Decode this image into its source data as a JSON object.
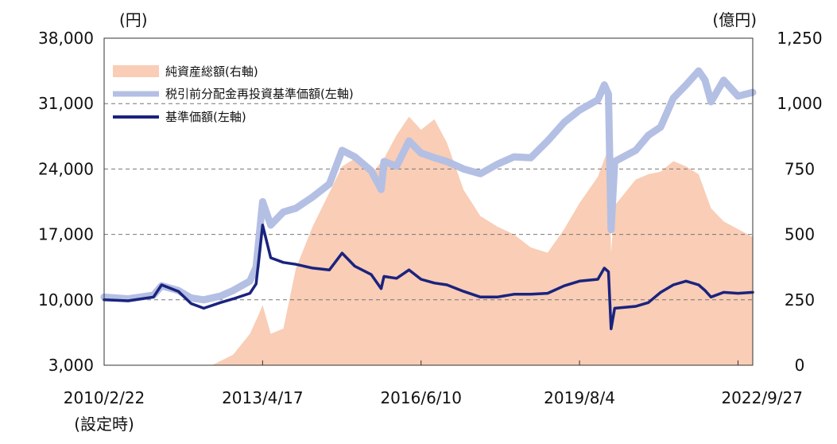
{
  "chart_data": {
    "type": "line",
    "left_axis": {
      "unit": "(円)",
      "range": [
        3000,
        38000
      ],
      "ticks": [
        "38,000",
        "31,000",
        "24,000",
        "17,000",
        "10,000",
        "3,000"
      ],
      "tick_values": [
        38000,
        31000,
        24000,
        17000,
        10000,
        3000
      ]
    },
    "right_axis": {
      "unit": "(億円)",
      "range": [
        0,
        1250
      ],
      "ticks": [
        "1,250",
        "1,000",
        "750",
        "500",
        "250",
        "0"
      ],
      "tick_values": [
        1250,
        1000,
        750,
        500,
        250,
        0
      ]
    },
    "x_axis": {
      "range": [
        "2010-02-22",
        "2023-01-12"
      ],
      "ticks": [
        "2010/2/22",
        "2013/4/17",
        "2016/6/10",
        "2019/8/4",
        "2022/9/27"
      ],
      "tick_dates": [
        "2010-02-22",
        "2013-04-17",
        "2016-06-10",
        "2019-08-04",
        "2022-09-27"
      ],
      "first_tick_note": "(設定時)"
    },
    "grid": "horizontal dashed",
    "legend_position": "top-left",
    "series": [
      {
        "name": "純資産総額(右軸)",
        "type": "area",
        "axis": "right",
        "color": "#f9cdb6",
        "x": [
          "2010-02-22",
          "2012-04-15",
          "2012-09-15",
          "2013-01-15",
          "2013-03-25",
          "2013-04-17",
          "2013-06-15",
          "2013-09-15",
          "2013-12-15",
          "2014-04-15",
          "2014-08-15",
          "2014-11-15",
          "2015-02-15",
          "2015-06-15",
          "2015-09-15",
          "2015-12-15",
          "2016-03-15",
          "2016-06-10",
          "2016-09-15",
          "2016-12-15",
          "2017-04-15",
          "2017-08-15",
          "2017-12-15",
          "2018-04-15",
          "2018-08-15",
          "2018-12-15",
          "2019-04-15",
          "2019-08-04",
          "2019-12-15",
          "2020-03-01",
          "2020-03-20",
          "2020-04-15",
          "2020-09-15",
          "2020-12-15",
          "2021-03-15",
          "2021-06-15",
          "2021-09-15",
          "2021-12-15",
          "2022-03-15",
          "2022-06-15",
          "2022-09-27",
          "2023-01-12"
        ],
        "values": [
          0,
          0,
          40,
          120,
          200,
          230,
          120,
          140,
          370,
          530,
          660,
          760,
          790,
          730,
          790,
          880,
          950,
          900,
          940,
          850,
          670,
          570,
          530,
          500,
          450,
          430,
          520,
          620,
          720,
          830,
          430,
          610,
          710,
          730,
          740,
          780,
          760,
          730,
          600,
          550,
          520,
          490
        ]
      },
      {
        "name": "税引前分配金再投資基準価額(左軸)",
        "type": "line",
        "axis": "left",
        "color": "#b4bfe4",
        "x": [
          "2010-02-22",
          "2010-08-15",
          "2011-02-15",
          "2011-04-15",
          "2011-08-15",
          "2011-11-15",
          "2012-02-15",
          "2012-06-15",
          "2012-09-15",
          "2013-01-15",
          "2013-03-01",
          "2013-04-17",
          "2013-06-15",
          "2013-09-15",
          "2013-12-15",
          "2014-04-15",
          "2014-08-15",
          "2014-11-15",
          "2015-02-15",
          "2015-06-15",
          "2015-08-25",
          "2015-09-15",
          "2015-12-15",
          "2016-03-15",
          "2016-06-10",
          "2016-09-15",
          "2016-12-15",
          "2017-04-15",
          "2017-08-15",
          "2017-12-15",
          "2018-04-15",
          "2018-08-15",
          "2018-12-15",
          "2019-04-15",
          "2019-08-04",
          "2019-12-15",
          "2020-01-31",
          "2020-03-01",
          "2020-03-20",
          "2020-04-15",
          "2020-09-15",
          "2020-12-15",
          "2021-03-15",
          "2021-06-15",
          "2021-09-15",
          "2021-12-15",
          "2022-01-31",
          "2022-03-15",
          "2022-06-15",
          "2022-09-27",
          "2023-01-12"
        ],
        "values": [
          10300,
          10100,
          10500,
          11500,
          11000,
          10200,
          10000,
          10400,
          11000,
          12000,
          13500,
          20500,
          18000,
          19400,
          19800,
          21000,
          22400,
          26000,
          25300,
          23800,
          21800,
          24800,
          24300,
          27000,
          25700,
          25200,
          24800,
          24000,
          23500,
          24500,
          25300,
          25200,
          27000,
          29000,
          30300,
          31400,
          33000,
          32000,
          17500,
          24800,
          26000,
          27600,
          28500,
          31600,
          33000,
          34500,
          33500,
          31200,
          33500,
          31800,
          32200
        ]
      },
      {
        "name": "基準価額(左軸)",
        "type": "line",
        "axis": "left",
        "color": "#1a237e",
        "x": [
          "2010-02-22",
          "2010-08-15",
          "2011-02-15",
          "2011-04-15",
          "2011-08-15",
          "2011-11-15",
          "2012-02-15",
          "2012-06-15",
          "2012-09-15",
          "2013-01-15",
          "2013-03-01",
          "2013-04-17",
          "2013-06-15",
          "2013-09-15",
          "2013-12-15",
          "2014-04-15",
          "2014-08-15",
          "2014-11-15",
          "2015-02-15",
          "2015-06-15",
          "2015-08-25",
          "2015-09-15",
          "2015-12-15",
          "2016-03-15",
          "2016-06-10",
          "2016-09-15",
          "2016-12-15",
          "2017-04-15",
          "2017-08-15",
          "2017-12-15",
          "2018-04-15",
          "2018-08-15",
          "2018-12-15",
          "2019-04-15",
          "2019-08-04",
          "2019-12-15",
          "2020-01-31",
          "2020-03-01",
          "2020-03-20",
          "2020-04-15",
          "2020-09-15",
          "2020-12-15",
          "2021-03-15",
          "2021-06-15",
          "2021-09-15",
          "2021-12-15",
          "2022-01-31",
          "2022-03-15",
          "2022-06-15",
          "2022-09-27",
          "2023-01-12"
        ],
        "values": [
          10000,
          9900,
          10300,
          11600,
          10900,
          9600,
          9100,
          9700,
          10100,
          10700,
          11700,
          18000,
          14500,
          14000,
          13800,
          13400,
          13200,
          15000,
          13600,
          12700,
          11200,
          12500,
          12300,
          13200,
          12200,
          11800,
          11600,
          10900,
          10300,
          10300,
          10600,
          10600,
          10700,
          11500,
          12000,
          12200,
          13400,
          13000,
          6900,
          9100,
          9300,
          9700,
          10800,
          11600,
          12000,
          11600,
          11000,
          10300,
          10800,
          10700,
          10800
        ]
      }
    ]
  }
}
